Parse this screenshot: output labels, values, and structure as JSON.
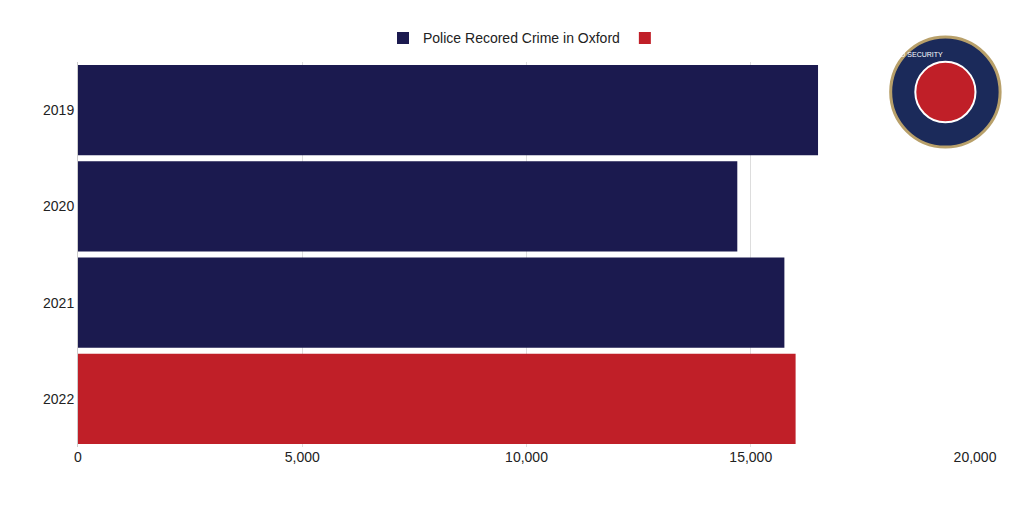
{
  "chart_data": {
    "type": "bar",
    "orientation": "horizontal",
    "categories": [
      "2019",
      "2020",
      "2021",
      "2022"
    ],
    "series": [
      {
        "name": "Police Recored Crime in Oxford",
        "color": "#1b1a4f",
        "values": [
          16500,
          14700,
          15750,
          null
        ]
      },
      {
        "color": "#c01f28",
        "values": [
          null,
          null,
          null,
          16000
        ]
      }
    ],
    "xlim": [
      0,
      20000
    ],
    "xticks": [
      0,
      {
        "value": 5000,
        "label": "5,000"
      },
      {
        "value": 10000,
        "label": "10,000"
      },
      {
        "value": 15000,
        "label": "15,000"
      },
      {
        "value": 20000,
        "label": "20,000"
      }
    ],
    "grid": true,
    "legend": "top",
    "annotations": [
      "OXGUARD SECURITY"
    ]
  }
}
